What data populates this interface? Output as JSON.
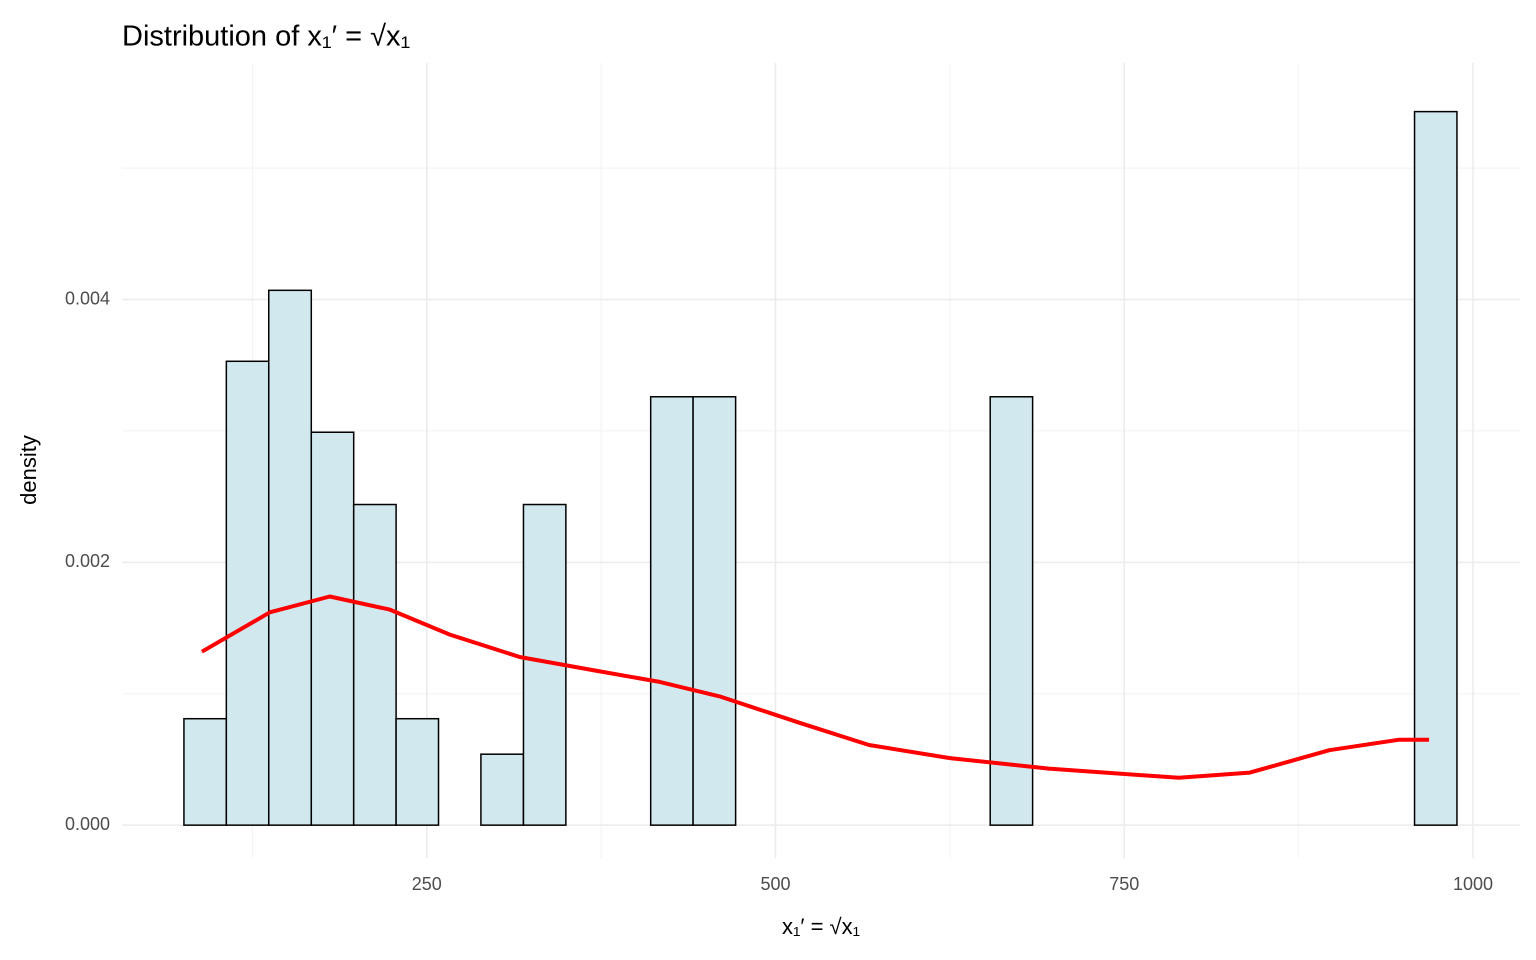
{
  "chart_data": {
    "type": "histogram",
    "title": "Distribution of x₁′ = √x₁",
    "x_label": "x₁′ = √x₁",
    "y_label": "density",
    "bins": [
      75.9,
      106.3,
      136.7,
      167.2,
      197.6,
      228.0,
      258.4,
      288.8,
      319.3,
      349.7,
      380.1,
      410.5,
      440.9,
      471.4,
      501.8,
      532.2,
      562.6,
      593.0,
      623.5,
      653.9,
      684.3,
      714.7,
      745.1,
      775.6,
      806.0,
      836.4,
      866.8,
      897.2,
      927.7,
      958.1,
      988.5
    ],
    "values": [
      0.00081,
      0.00353,
      0.00407,
      0.00299,
      0.00244,
      0.00081,
      0,
      0.00054,
      0.00244,
      0,
      0,
      0.00326,
      0.00326,
      0,
      0,
      0,
      0,
      0,
      0,
      0.00326,
      0,
      0,
      0,
      0,
      0,
      0,
      0,
      0,
      0,
      0.00543
    ],
    "color": "#d1e8ef",
    "edge_color": "#000000",
    "density": {
      "color": "#ff0000",
      "x": [
        88.8,
        137.5,
        180.5,
        223.5,
        266.5,
        316.6,
        374,
        417,
        460,
        517,
        567,
        625,
        696,
        789,
        840,
        897,
        947,
        968.5
      ],
      "values": [
        0.00132,
        0.00162,
        0.00174,
        0.00164,
        0.00145,
        0.00128,
        0.00117,
        0.00109,
        0.00098,
        0.00078,
        0.00061,
        0.00051,
        0.00043,
        0.00036,
        0.0004,
        0.00057,
        0.00065,
        0.00065
      ]
    },
    "xlim": [
      31.5,
      1033.7
    ],
    "ylim": [
      -0.00025,
      0.0058
    ],
    "xticks": [
      250,
      500,
      750,
      1000
    ],
    "xminorticks": [
      125,
      375,
      625,
      875
    ],
    "yticks": [
      {
        "value": 0,
        "label": "0.000"
      },
      {
        "value": 0.002,
        "label": "0.002"
      },
      {
        "value": 0.004,
        "label": "0.004"
      }
    ],
    "yminorticks": [
      0.001,
      0.003,
      0.005
    ],
    "grid": true
  }
}
